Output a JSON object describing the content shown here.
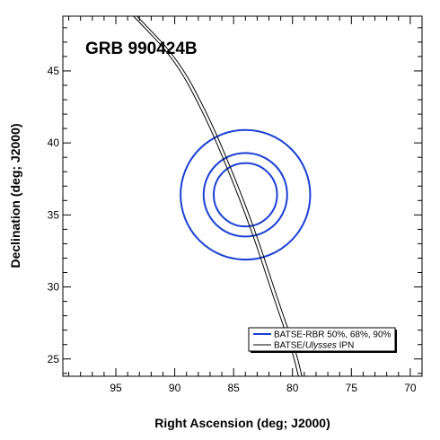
{
  "chart_data": {
    "type": "scatter",
    "title": "GRB 990424B",
    "xlabel": "Right Ascension (deg; J2000)",
    "ylabel": "Declination (deg; J2000)",
    "xlim": [
      99.5,
      69.0
    ],
    "ylim": [
      23.8,
      48.8
    ],
    "x_reversed": true,
    "x_ticks": [
      95,
      90,
      85,
      80,
      75,
      70
    ],
    "y_ticks": [
      25,
      30,
      35,
      40,
      45
    ],
    "grid": false,
    "legend_position": "bottom-right",
    "legend": [
      {
        "label": "BATSE-RBR 50%, 68%, 90%",
        "color": "#1a3fd6"
      },
      {
        "label_prefix": "BATSE/",
        "label_italic": "Ulysses",
        "label_suffix": " IPN",
        "color": "#000000"
      }
    ],
    "series": [
      {
        "name": "BATSE-RBR 50%, 68%, 90%",
        "kind": "error-circles",
        "color": "#1a3fd6",
        "center": [
          84.0,
          36.4
        ],
        "radius_dec_deg": [
          2.2,
          2.9,
          4.5
        ]
      },
      {
        "name": "BATSE/Ulysses IPN",
        "kind": "annulus-lines",
        "color": "#000000",
        "lines": [
          {
            "points": [
              [
                93.5,
                48.8
              ],
              [
                90.0,
                45.8
              ],
              [
                87.5,
                42.0
              ],
              [
                85.5,
                38.2
              ],
              [
                83.5,
                34.0
              ],
              [
                81.5,
                29.0
              ],
              [
                80.0,
                25.5
              ],
              [
                79.5,
                23.8
              ]
            ]
          },
          {
            "points": [
              [
                93.2,
                48.8
              ],
              [
                89.7,
                45.8
              ],
              [
                87.2,
                42.0
              ],
              [
                85.2,
                38.2
              ],
              [
                83.2,
                34.0
              ],
              [
                81.2,
                29.0
              ],
              [
                79.7,
                25.5
              ],
              [
                79.2,
                23.8
              ]
            ]
          }
        ]
      }
    ]
  }
}
